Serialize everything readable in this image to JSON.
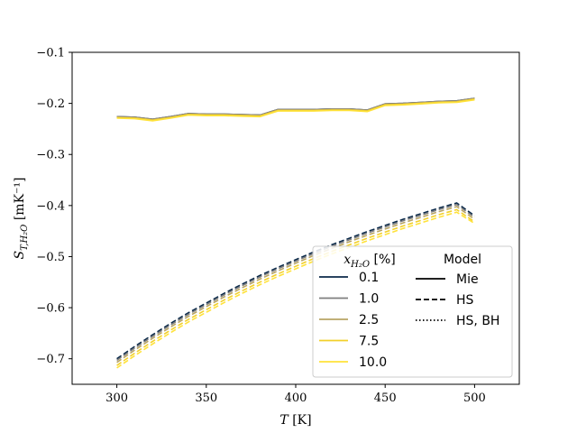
{
  "chart_data": {
    "type": "line",
    "xlabel": "T [K]",
    "ylabel": "S_{T,H2O} [mK⁻¹]",
    "xlim": [
      275,
      525
    ],
    "ylim": [
      -0.75,
      -0.1
    ],
    "x_ticks": [
      300,
      350,
      400,
      450,
      500
    ],
    "x_tick_labels": [
      "300",
      "350",
      "400",
      "450",
      "500"
    ],
    "y_ticks": [
      -0.7,
      -0.6,
      -0.5,
      -0.4,
      -0.3,
      -0.2,
      -0.1
    ],
    "y_tick_labels": [
      "−0.7",
      "−0.6",
      "−0.5",
      "−0.4",
      "−0.3",
      "−0.2",
      "−0.1"
    ],
    "grid": false,
    "legend_placement": "lower-right",
    "legend": {
      "composition_title": "x_{H2O} [%]",
      "model_title": "Model",
      "compositions": [
        {
          "label": "0.1",
          "color": "#0b2a4a"
        },
        {
          "label": "1.0",
          "color": "#7f7f7f"
        },
        {
          "label": "2.5",
          "color": "#b8a464"
        },
        {
          "label": "7.5",
          "color": "#f2d02a"
        },
        {
          "label": "10.0",
          "color": "#ffe23a"
        }
      ],
      "models": [
        {
          "label": "Mie",
          "style": "solid"
        },
        {
          "label": "HS",
          "style": "dashed"
        },
        {
          "label": "HS, BH",
          "style": "dotted"
        }
      ]
    },
    "x": [
      300,
      310,
      320,
      330,
      340,
      350,
      360,
      370,
      380,
      390,
      400,
      410,
      420,
      430,
      440,
      450,
      460,
      470,
      480,
      490,
      500
    ],
    "series": [
      {
        "name": "0.1",
        "model": "Mie",
        "values": [
          -0.226,
          -0.227,
          -0.231,
          -0.226,
          -0.22,
          -0.221,
          -0.221,
          -0.222,
          -0.223,
          -0.212,
          -0.212,
          -0.212,
          -0.211,
          -0.211,
          -0.213,
          -0.201,
          -0.2,
          -0.198,
          -0.196,
          -0.195,
          -0.19
        ]
      },
      {
        "name": "1.0",
        "model": "Mie",
        "values": [
          -0.226,
          -0.227,
          -0.231,
          -0.226,
          -0.22,
          -0.221,
          -0.221,
          -0.222,
          -0.223,
          -0.212,
          -0.212,
          -0.212,
          -0.211,
          -0.211,
          -0.213,
          -0.201,
          -0.2,
          -0.198,
          -0.196,
          -0.195,
          -0.19
        ]
      },
      {
        "name": "2.5",
        "model": "Mie",
        "values": [
          -0.227,
          -0.228,
          -0.232,
          -0.227,
          -0.221,
          -0.222,
          -0.222,
          -0.223,
          -0.224,
          -0.213,
          -0.213,
          -0.213,
          -0.212,
          -0.212,
          -0.214,
          -0.202,
          -0.201,
          -0.199,
          -0.197,
          -0.196,
          -0.191
        ]
      },
      {
        "name": "7.5",
        "model": "Mie",
        "values": [
          -0.228,
          -0.229,
          -0.233,
          -0.228,
          -0.222,
          -0.223,
          -0.223,
          -0.224,
          -0.225,
          -0.214,
          -0.214,
          -0.214,
          -0.213,
          -0.213,
          -0.215,
          -0.203,
          -0.202,
          -0.2,
          -0.198,
          -0.197,
          -0.192
        ]
      },
      {
        "name": "10.0",
        "model": "Mie",
        "values": [
          -0.229,
          -0.23,
          -0.234,
          -0.229,
          -0.223,
          -0.224,
          -0.224,
          -0.225,
          -0.226,
          -0.215,
          -0.215,
          -0.215,
          -0.214,
          -0.214,
          -0.216,
          -0.204,
          -0.203,
          -0.201,
          -0.199,
          -0.198,
          -0.193
        ]
      },
      {
        "name": "0.1",
        "model": "HS",
        "values": [
          -0.7,
          -0.676,
          -0.653,
          -0.631,
          -0.61,
          -0.591,
          -0.572,
          -0.554,
          -0.537,
          -0.521,
          -0.506,
          -0.491,
          -0.477,
          -0.464,
          -0.451,
          -0.439,
          -0.427,
          -0.416,
          -0.405,
          -0.395,
          -0.42
        ]
      },
      {
        "name": "1.0",
        "model": "HS",
        "values": [
          -0.703,
          -0.679,
          -0.656,
          -0.634,
          -0.613,
          -0.594,
          -0.575,
          -0.557,
          -0.54,
          -0.524,
          -0.509,
          -0.494,
          -0.48,
          -0.467,
          -0.454,
          -0.442,
          -0.43,
          -0.419,
          -0.408,
          -0.398,
          -0.423
        ]
      },
      {
        "name": "2.5",
        "model": "HS",
        "values": [
          -0.707,
          -0.683,
          -0.66,
          -0.638,
          -0.617,
          -0.598,
          -0.579,
          -0.561,
          -0.544,
          -0.528,
          -0.513,
          -0.498,
          -0.484,
          -0.471,
          -0.458,
          -0.446,
          -0.434,
          -0.423,
          -0.412,
          -0.402,
          -0.427
        ]
      },
      {
        "name": "7.5",
        "model": "HS",
        "values": [
          -0.713,
          -0.689,
          -0.666,
          -0.644,
          -0.623,
          -0.604,
          -0.585,
          -0.567,
          -0.55,
          -0.534,
          -0.519,
          -0.504,
          -0.49,
          -0.477,
          -0.464,
          -0.452,
          -0.44,
          -0.429,
          -0.418,
          -0.408,
          -0.432
        ]
      },
      {
        "name": "10.0",
        "model": "HS",
        "values": [
          -0.718,
          -0.694,
          -0.671,
          -0.649,
          -0.628,
          -0.609,
          -0.59,
          -0.572,
          -0.555,
          -0.539,
          -0.524,
          -0.509,
          -0.495,
          -0.482,
          -0.469,
          -0.457,
          -0.445,
          -0.434,
          -0.423,
          -0.413,
          -0.435
        ]
      }
    ]
  }
}
